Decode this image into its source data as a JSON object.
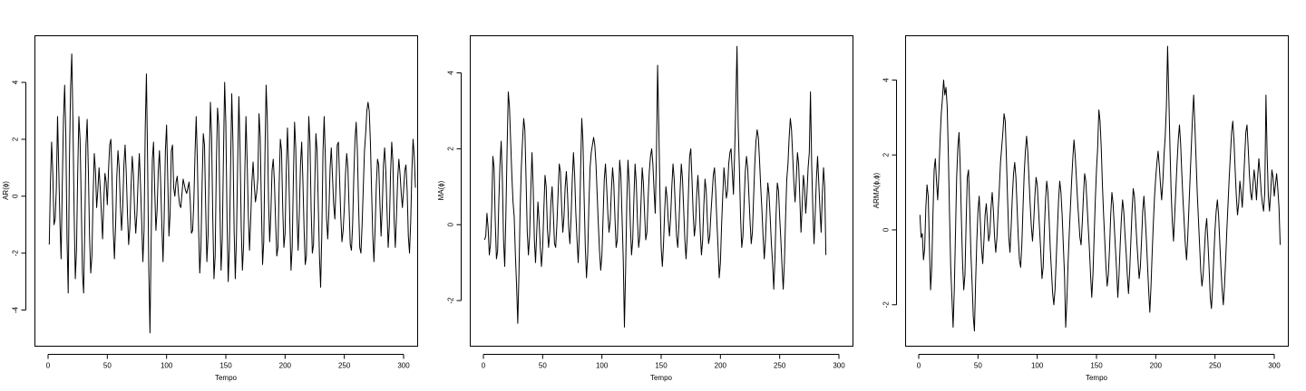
{
  "chart_data": [
    {
      "type": "line",
      "xlabel": "Tempo",
      "ylabel": "AR(ɸ)",
      "xlim": [
        0,
        300
      ],
      "ylim": [
        -5,
        5.4
      ],
      "xticks": [
        0,
        50,
        100,
        150,
        200,
        250,
        300
      ],
      "yticks": [
        -4,
        -2,
        0,
        2,
        4
      ],
      "grid": false,
      "x_start": 1,
      "series": [
        {
          "values": [
            -1.7,
            0.5,
            1.9,
            0.8,
            -1.0,
            -0.8,
            0.3,
            2.8,
            1.0,
            -0.9,
            -2.2,
            0.4,
            2.7,
            3.9,
            2.1,
            -1.5,
            -3.4,
            1.2,
            3.8,
            5.0,
            2.6,
            -0.6,
            -2.9,
            -1.9,
            0.8,
            2.8,
            2.0,
            -0.2,
            -2.7,
            -3.4,
            -1.1,
            1.8,
            2.7,
            0.9,
            -1.4,
            -2.7,
            -2.1,
            0.0,
            1.5,
            0.9,
            -0.4,
            0.2,
            1.0,
            0.3,
            -0.6,
            -1.5,
            -0.2,
            0.8,
            0.5,
            -0.3,
            0.9,
            1.8,
            2.0,
            0.6,
            -1.2,
            -2.2,
            -1.0,
            0.7,
            1.6,
            1.0,
            -0.3,
            -1.2,
            -0.4,
            1.1,
            1.8,
            0.8,
            -0.6,
            -1.7,
            -1.1,
            0.3,
            1.4,
            0.8,
            -0.5,
            -1.3,
            -0.6,
            0.6,
            1.5,
            0.4,
            -0.9,
            -2.3,
            -1.2,
            2.4,
            4.3,
            1.2,
            -2.6,
            -4.8,
            -1.5,
            1.3,
            1.9,
            0.2,
            -1.2,
            -0.5,
            0.9,
            1.6,
            0.5,
            -1.0,
            -2.3,
            -0.7,
            1.6,
            2.5,
            0.6,
            -1.4,
            -0.6,
            1.6,
            1.8,
            0.3,
            0.0,
            0.5,
            0.7,
            0.1,
            -0.3,
            -0.4,
            0.1,
            0.6,
            0.4,
            0.2,
            0.1,
            0.3,
            0.5,
            -0.2,
            -1.3,
            -1.2,
            -0.2,
            1.5,
            2.8,
            1.2,
            -1.1,
            -2.7,
            -1.8,
            0.5,
            2.2,
            1.8,
            -0.4,
            -2.3,
            -1.4,
            1.2,
            3.3,
            2.1,
            -0.8,
            -2.9,
            -2.1,
            1.1,
            3.1,
            2.5,
            -0.4,
            -2.6,
            -1.5,
            1.4,
            4.0,
            2.6,
            -0.8,
            -3.0,
            -1.8,
            1.0,
            3.6,
            1.9,
            -1.2,
            -2.9,
            -1.4,
            1.2,
            3.5,
            1.7,
            -1.1,
            -2.6,
            -1.7,
            0.8,
            2.8,
            1.2,
            -0.7,
            -1.9,
            -0.8,
            0.5,
            1.2,
            0.4,
            -0.2,
            0.1,
            0.6,
            2.9,
            2.1,
            -0.3,
            -2.4,
            -1.6,
            1.4,
            3.9,
            2.7,
            -0.1,
            -1.6,
            -0.6,
            0.9,
            1.3,
            0.5,
            -0.9,
            -2.1,
            -1.8,
            0.4,
            2.0,
            1.6,
            -0.4,
            -1.8,
            -1.3,
            0.9,
            2.4,
            1.1,
            -0.9,
            -2.6,
            -1.8,
            0.6,
            2.6,
            1.7,
            -0.6,
            -1.9,
            -0.6,
            1.1,
            1.9,
            0.6,
            -1.1,
            -2.4,
            -2.1,
            0.7,
            2.8,
            1.9,
            -0.5,
            -2.0,
            -1.7,
            0.3,
            2.2,
            1.6,
            -0.3,
            -2.1,
            -3.2,
            -1.3,
            1.6,
            2.8,
            1.3,
            -0.8,
            -1.5,
            -0.5,
            1.0,
            1.7,
            0.7,
            -0.3,
            -0.8,
            0.4,
            1.8,
            1.9,
            0.6,
            -0.7,
            -1.6,
            -1.2,
            -0.4,
            0.8,
            1.5,
            1.0,
            -0.4,
            -1.7,
            -1.9,
            -1.0,
            0.7,
            2.0,
            2.6,
            1.6,
            -0.3,
            -1.8,
            -2.0,
            -1.0,
            0.3,
            1.6,
            2.2,
            3.0,
            3.3,
            3.0,
            1.9,
            0.2,
            -1.4,
            -2.3,
            -1.1,
            0.4,
            1.3,
            1.1,
            -0.2,
            -1.4,
            -0.4,
            1.1,
            1.7,
            0.9,
            -0.5,
            -1.8,
            -1.0,
            0.8,
            1.9,
            1.2,
            -0.8,
            -1.8,
            -0.7,
            0.6,
            1.3,
            0.8,
            0.1,
            -0.4,
            0.2,
            0.9,
            1.1,
            0.2,
            -1.4,
            -2.0,
            -0.9,
            0.9,
            2.0,
            1.4,
            0.3
          ]
        }
      ]
    },
    {
      "type": "line",
      "xlabel": "Tempo",
      "ylabel": "MA(ɸ)",
      "xlim": [
        0,
        300
      ],
      "ylim": [
        -3,
        4.8
      ],
      "xticks": [
        0,
        50,
        100,
        150,
        200,
        250,
        300
      ],
      "yticks": [
        -2,
        0,
        2,
        4
      ],
      "grid": false,
      "x_start": 1,
      "series": [
        {
          "values": [
            -0.4,
            -0.3,
            0.3,
            -0.1,
            -0.8,
            -0.5,
            0.4,
            1.8,
            1.5,
            0.1,
            -0.9,
            -0.7,
            0.6,
            1.6,
            2.2,
            1.2,
            -0.4,
            -1.1,
            0.3,
            2.0,
            3.5,
            3.1,
            2.2,
            1.3,
            0.6,
            0.2,
            -0.8,
            -1.6,
            -2.6,
            -1.3,
            0.4,
            1.5,
            2.2,
            2.8,
            2.5,
            1.2,
            -0.2,
            -0.8,
            -0.3,
            0.9,
            1.9,
            1.0,
            -0.4,
            -1.0,
            -0.2,
            0.6,
            0.1,
            -0.6,
            -1.1,
            -0.6,
            0.4,
            1.3,
            1.0,
            -0.1,
            -0.6,
            -0.2,
            0.6,
            1.0,
            0.3,
            -0.5,
            -0.6,
            0.0,
            0.8,
            1.6,
            1.4,
            0.5,
            -0.2,
            0.2,
            1.0,
            1.4,
            0.8,
            -0.1,
            -0.5,
            0.2,
            1.2,
            1.9,
            1.3,
            0.3,
            -0.4,
            -1.0,
            -0.2,
            1.4,
            2.8,
            2.2,
            0.7,
            -0.6,
            -1.4,
            -0.8,
            0.5,
            1.5,
            1.9,
            2.1,
            2.3,
            2.1,
            1.6,
            0.8,
            0.0,
            -0.7,
            -1.2,
            -0.8,
            0.2,
            1.2,
            1.6,
            1.0,
            0.3,
            -0.2,
            0.1,
            0.9,
            1.5,
            1.1,
            0.2,
            -0.6,
            -0.4,
            0.6,
            1.7,
            1.3,
            0.2,
            -0.9,
            -2.7,
            -1.2,
            0.6,
            1.7,
            1.1,
            0.0,
            -0.8,
            -0.4,
            0.7,
            1.6,
            1.1,
            0.1,
            -0.6,
            -0.3,
            0.6,
            1.5,
            1.1,
            0.3,
            -0.4,
            -0.2,
            0.7,
            1.4,
            1.8,
            2.0,
            1.6,
            0.9,
            0.3,
            1.8,
            4.2,
            2.6,
            0.8,
            -0.6,
            -1.1,
            -0.5,
            0.4,
            1.0,
            0.7,
            0.1,
            -0.3,
            0.2,
            1.0,
            1.6,
            1.2,
            0.4,
            -0.3,
            -0.6,
            0.0,
            0.9,
            1.6,
            1.2,
            0.4,
            -0.4,
            -0.9,
            -0.3,
            0.8,
            1.8,
            2.0,
            1.2,
            0.3,
            -0.3,
            0.0,
            0.8,
            1.3,
            0.7,
            -0.2,
            -0.8,
            -0.4,
            0.5,
            1.2,
            0.9,
            0.1,
            -0.5,
            -0.3,
            0.3,
            0.8,
            1.3,
            1.5,
            0.9,
            0.1,
            -0.6,
            -1.4,
            -1.0,
            0.0,
            0.8,
            1.5,
            1.1,
            0.7,
            0.9,
            1.6,
            1.9,
            2.0,
            1.4,
            0.8,
            1.9,
            3.2,
            4.7,
            2.6,
            1.5,
            0.2,
            -0.6,
            -0.3,
            0.6,
            1.4,
            1.8,
            1.5,
            0.8,
            0.1,
            -0.5,
            -0.2,
            0.7,
            1.6,
            2.2,
            2.5,
            2.3,
            1.7,
            1.0,
            0.4,
            -0.3,
            -0.9,
            -0.4,
            0.4,
            1.1,
            0.8,
            0.2,
            -0.5,
            -1.0,
            -1.7,
            -0.9,
            0.3,
            1.1,
            0.9,
            0.2,
            -0.4,
            -1.1,
            -1.7,
            -1.0,
            0.2,
            1.2,
            1.6,
            2.3,
            2.8,
            2.5,
            1.8,
            1.1,
            0.6,
            1.2,
            1.9,
            1.6,
            0.7,
            -0.2,
            0.5,
            1.3,
            1.0,
            0.3,
            0.8,
            1.5,
            1.9,
            3.5,
            1.6,
            0.4,
            -0.5,
            0.3,
            1.2,
            1.8,
            1.1,
            0.4,
            -0.2,
            0.8,
            1.5,
            1.0,
            -0.8
          ]
        }
      ]
    },
    {
      "type": "line",
      "xlabel": "Tempo",
      "ylabel": "ARMA(ɸ,ɸ)",
      "xlim": [
        0,
        300
      ],
      "ylim": [
        -2.9,
        5.0
      ],
      "xticks": [
        0,
        50,
        100,
        150,
        200,
        250,
        300
      ],
      "yticks": [
        -2,
        0,
        2,
        4
      ],
      "grid": false,
      "x_start": 1,
      "series": [
        {
          "values": [
            0.4,
            -0.2,
            -0.1,
            -0.8,
            -0.5,
            0.6,
            1.2,
            0.9,
            -0.4,
            -1.6,
            -1.0,
            0.4,
            1.6,
            1.9,
            1.3,
            0.8,
            1.5,
            2.4,
            3.1,
            3.5,
            4.0,
            3.6,
            3.8,
            3.3,
            2.0,
            0.4,
            -1.0,
            -1.8,
            -2.6,
            -1.6,
            -0.1,
            1.4,
            2.2,
            2.6,
            1.7,
            0.3,
            -0.9,
            -1.6,
            -1.2,
            0.2,
            1.4,
            1.6,
            0.6,
            -0.6,
            -1.4,
            -2.3,
            -2.7,
            -1.4,
            -0.3,
            0.5,
            0.9,
            0.2,
            -0.5,
            -0.9,
            -0.3,
            0.4,
            0.7,
            0.2,
            -0.3,
            -0.1,
            0.6,
            1.0,
            0.5,
            -0.2,
            -0.6,
            -0.2,
            0.5,
            1.1,
            1.8,
            2.2,
            2.6,
            3.1,
            2.9,
            1.9,
            0.8,
            -0.2,
            -0.6,
            0.1,
            0.9,
            1.5,
            1.8,
            1.4,
            0.6,
            -0.2,
            -0.8,
            -1.0,
            -0.4,
            0.6,
            1.5,
            2.1,
            2.5,
            2.1,
            1.4,
            0.7,
            0.1,
            -0.3,
            0.2,
            0.9,
            1.4,
            1.2,
            0.6,
            0.0,
            -0.6,
            -1.3,
            -1.0,
            0.0,
            0.8,
            1.3,
            1.0,
            0.3,
            -0.5,
            -1.1,
            -1.7,
            -2.0,
            -1.6,
            -0.8,
            0.0,
            0.8,
            1.3,
            1.0,
            0.4,
            -0.4,
            -1.2,
            -2.6,
            -1.9,
            -0.9,
            -0.1,
            0.6,
            1.3,
            1.9,
            2.4,
            2.0,
            1.4,
            0.8,
            0.3,
            -0.2,
            -0.4,
            0.2,
            0.9,
            1.5,
            1.3,
            0.7,
            0.1,
            -0.5,
            -1.2,
            -1.8,
            -1.2,
            -0.2,
            0.8,
            1.6,
            2.2,
            3.2,
            2.9,
            2.2,
            1.2,
            0.4,
            -0.3,
            -1.0,
            -1.5,
            -1.2,
            -0.5,
            0.4,
            1.0,
            0.7,
            0.1,
            -0.5,
            -1.1,
            -1.8,
            -1.2,
            -0.4,
            0.3,
            0.8,
            0.5,
            -0.1,
            -0.6,
            -1.2,
            -1.7,
            -1.1,
            -0.3,
            0.5,
            1.1,
            0.9,
            0.3,
            -0.3,
            -0.8,
            -1.3,
            -1.0,
            -0.3,
            0.5,
            0.9,
            0.4,
            -0.2,
            -0.9,
            -1.6,
            -2.2,
            -1.5,
            -0.6,
            0.2,
            0.9,
            1.4,
            1.8,
            2.1,
            1.7,
            1.2,
            0.8,
            1.3,
            2.0,
            2.5,
            3.3,
            4.9,
            3.6,
            2.2,
            1.0,
            0.2,
            -0.3,
            0.4,
            1.1,
            1.8,
            2.4,
            2.8,
            2.3,
            1.5,
            0.8,
            0.2,
            -0.4,
            -0.8,
            -0.2,
            0.6,
            1.4,
            2.2,
            3.0,
            3.6,
            2.8,
            1.9,
            1.0,
            0.3,
            -0.4,
            -1.1,
            -1.5,
            -1.2,
            -0.6,
            0.0,
            0.3,
            -0.3,
            -1.0,
            -1.8,
            -2.1,
            -1.5,
            -0.7,
            0.0,
            0.5,
            0.8,
            0.4,
            -0.3,
            -1.0,
            -1.6,
            -2.0,
            -1.5,
            -0.8,
            0.0,
            0.7,
            1.4,
            2.0,
            2.6,
            2.9,
            2.4,
            1.6,
            0.9,
            0.4,
            0.7,
            1.3,
            1.0,
            0.6,
            1.2,
            1.9,
            2.6,
            2.8,
            2.2,
            1.5,
            1.0,
            0.8,
            1.2,
            1.6,
            1.3,
            0.8,
            1.4,
            1.9,
            1.5,
            1.0,
            0.7,
            0.5,
            1.0,
            3.6,
            2.0,
            0.9,
            0.5,
            1.0,
            1.6,
            1.4,
            0.9,
            1.2,
            1.5,
            1.1,
            0.6,
            -0.4
          ]
        }
      ]
    }
  ]
}
